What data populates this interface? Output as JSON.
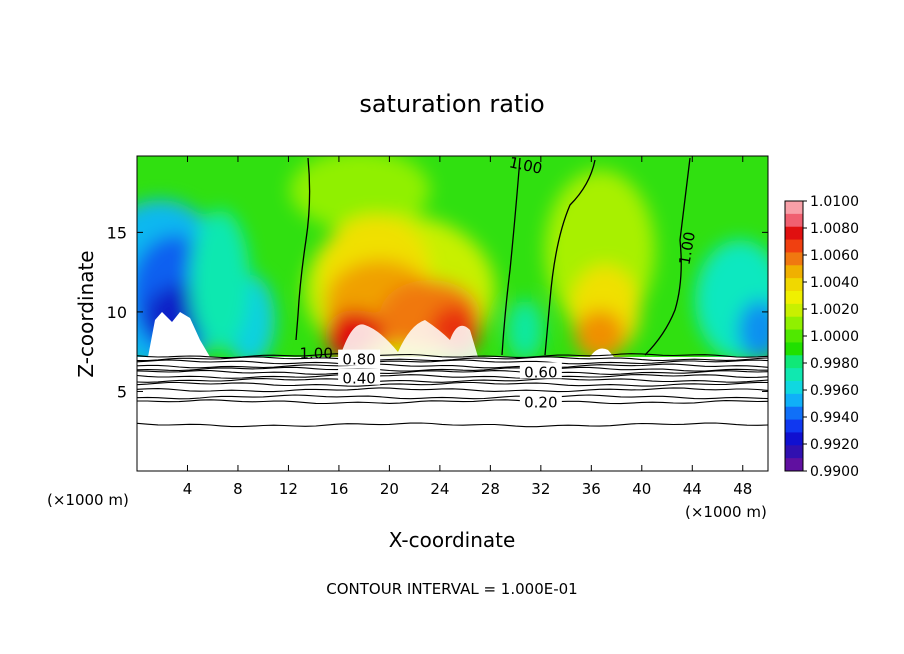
{
  "chart_data": {
    "type": "heatmap",
    "title": "saturation ratio",
    "xlabel": "X-coordinate",
    "ylabel": "Z-coordinate",
    "x_unit_left": "(×1000 m)",
    "x_unit_right": "(×1000 m)",
    "footer": "CONTOUR INTERVAL = 1.000E-01",
    "xlim": [
      0,
      50
    ],
    "ylim": [
      0,
      19.8
    ],
    "x_ticks": [
      4,
      8,
      12,
      16,
      20,
      24,
      28,
      32,
      36,
      40,
      44,
      48
    ],
    "y_ticks": [
      5,
      10,
      15
    ],
    "colorbar": {
      "levels": [
        "1.0100",
        "1.0080",
        "1.0060",
        "1.0040",
        "1.0020",
        "1.0000",
        "0.9980",
        "0.9960",
        "0.9940",
        "0.9920",
        "0.9900"
      ],
      "colors": [
        "#f8a0a8",
        "#f06070",
        "#e01010",
        "#f04010",
        "#f07810",
        "#f0b000",
        "#f0d800",
        "#f0f000",
        "#c8f000",
        "#90f000",
        "#50e800",
        "#20e000",
        "#10e878",
        "#10e8b0",
        "#10d8e0",
        "#10b0f8",
        "#1070f8",
        "#1038f0",
        "#1010d0",
        "#3010b0",
        "#6010a0"
      ]
    },
    "contour_labels": [
      {
        "text": "1.00",
        "x": 30.8,
        "y": 19.2
      },
      {
        "text": "1.00",
        "x": 43.6,
        "y": 14.0
      },
      {
        "text": "1.00",
        "x": 14.2,
        "y": 7.4
      },
      {
        "text": "0.80",
        "x": 17.6,
        "y": 7.0
      },
      {
        "text": "0.40",
        "x": 17.6,
        "y": 5.8
      },
      {
        "text": "0.60",
        "x": 32.0,
        "y": 6.2
      },
      {
        "text": "0.20",
        "x": 32.0,
        "y": 4.3
      }
    ],
    "lower_contours_z": [
      7.25,
      7.05,
      6.85,
      6.6,
      6.4,
      6.2,
      5.95,
      5.7,
      5.45,
      5.1,
      4.65,
      4.35,
      2.9
    ],
    "cloud_top_z": 7.3
  }
}
